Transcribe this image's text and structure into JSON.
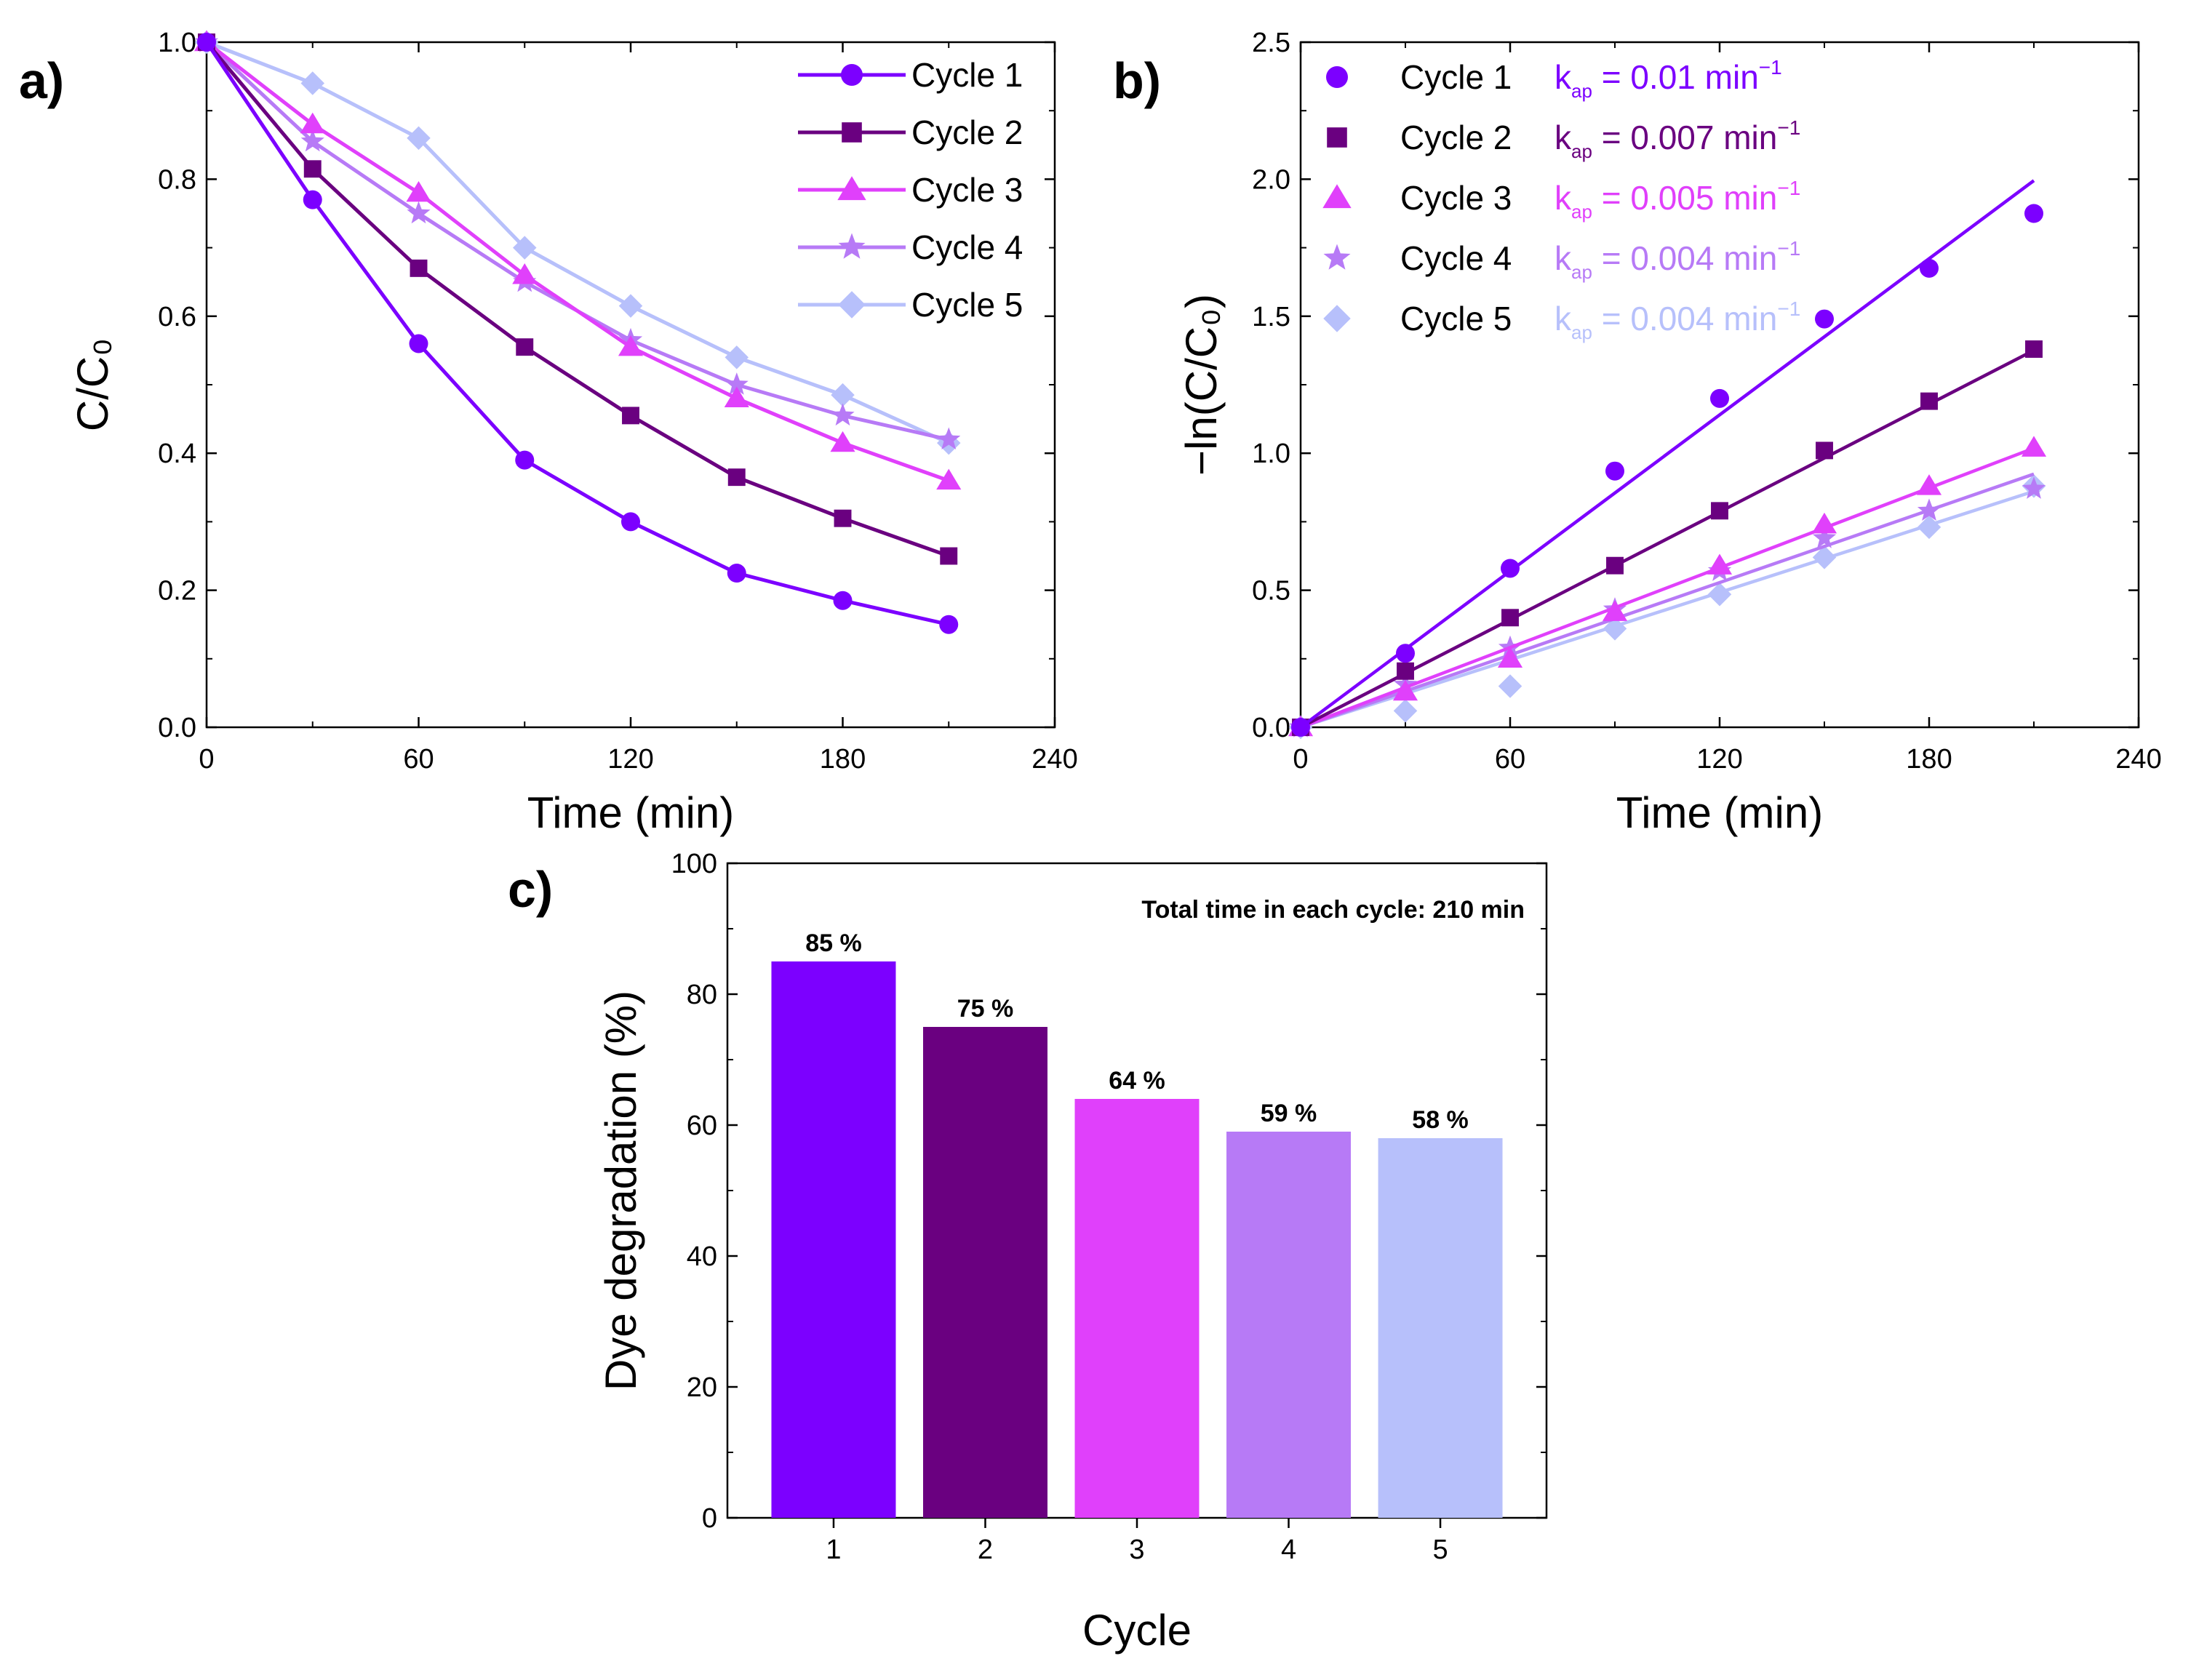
{
  "colors": {
    "cycle1": "#7c00ff",
    "cycle2": "#6a0080",
    "cycle3": "#e040fb",
    "cycle4": "#b77af6",
    "cycle5": "#b7c0fb"
  },
  "chart_data": [
    {
      "id": "a",
      "type": "line",
      "panel_label": "a)",
      "xlabel": "Time (min)",
      "ylabel": "C/C₀",
      "xlim": [
        0,
        240
      ],
      "ylim": [
        0,
        1
      ],
      "xticks": [
        0,
        60,
        120,
        180,
        240
      ],
      "yticks": [
        0.0,
        0.2,
        0.4,
        0.6,
        0.8,
        1.0
      ],
      "ytick_labels": [
        "0.0",
        "0.2",
        "0.4",
        "0.6",
        "0.8",
        "1.0"
      ],
      "x": [
        0,
        30,
        60,
        90,
        120,
        150,
        180,
        210
      ],
      "legend_position": "top-right",
      "series": [
        {
          "name": "Cycle 1",
          "marker": "circle",
          "values": [
            1.0,
            0.77,
            0.56,
            0.39,
            0.3,
            0.225,
            0.185,
            0.15
          ]
        },
        {
          "name": "Cycle 2",
          "marker": "square",
          "values": [
            1.0,
            0.815,
            0.67,
            0.555,
            0.455,
            0.365,
            0.305,
            0.25
          ]
        },
        {
          "name": "Cycle 3",
          "marker": "triangle",
          "values": [
            1.0,
            0.88,
            0.78,
            0.66,
            0.555,
            0.48,
            0.415,
            0.36
          ]
        },
        {
          "name": "Cycle 4",
          "marker": "star",
          "values": [
            1.0,
            0.855,
            0.75,
            0.65,
            0.565,
            0.5,
            0.455,
            0.42
          ]
        },
        {
          "name": "Cycle 5",
          "marker": "diamond",
          "values": [
            1.0,
            0.94,
            0.86,
            0.7,
            0.615,
            0.54,
            0.485,
            0.415
          ]
        }
      ]
    },
    {
      "id": "b",
      "type": "scatter",
      "panel_label": "b)",
      "xlabel": "Time (min)",
      "ylabel": "−ln(C/C₀)",
      "xlim": [
        0,
        240
      ],
      "ylim": [
        0,
        2.5
      ],
      "xticks": [
        0,
        60,
        120,
        180,
        240
      ],
      "yticks": [
        0.0,
        0.5,
        1.0,
        1.5,
        2.0,
        2.5
      ],
      "ytick_labels": [
        "0.0",
        "0.5",
        "1.0",
        "1.5",
        "2.0",
        "2.5"
      ],
      "x": [
        0,
        30,
        60,
        90,
        120,
        150,
        180,
        210
      ],
      "legend_position": "top-left",
      "series": [
        {
          "name": "Cycle 1",
          "marker": "circle",
          "kap_prefix": "k",
          "kap_sub": "ap",
          "kap_value": " = 0.01 min",
          "kap_sup": "−1",
          "slope": 0.0095,
          "values": [
            0.0,
            0.27,
            0.58,
            0.935,
            1.2,
            1.49,
            1.675,
            1.875
          ]
        },
        {
          "name": "Cycle 2",
          "marker": "square",
          "kap_prefix": "k",
          "kap_sub": "ap",
          "kap_value": " = 0.007 min",
          "kap_sup": "−1",
          "slope": 0.00655,
          "values": [
            0.0,
            0.205,
            0.4,
            0.59,
            0.79,
            1.01,
            1.19,
            1.38
          ]
        },
        {
          "name": "Cycle 3",
          "marker": "triangle",
          "kap_prefix": "k",
          "kap_sub": "ap",
          "kap_value": " = 0.005 min",
          "kap_sup": "−1",
          "slope": 0.00485,
          "values": [
            0.0,
            0.13,
            0.25,
            0.42,
            0.59,
            0.74,
            0.88,
            1.02
          ]
        },
        {
          "name": "Cycle 4",
          "marker": "star",
          "kap_prefix": "k",
          "kap_sub": "ap",
          "kap_value": " = 0.004 min",
          "kap_sup": "−1",
          "slope": 0.0044,
          "values": [
            0.0,
            0.155,
            0.29,
            0.43,
            0.57,
            0.69,
            0.79,
            0.87
          ]
        },
        {
          "name": "Cycle 5",
          "marker": "diamond",
          "kap_prefix": "k",
          "kap_sub": "ap",
          "kap_value": " = 0.004 min",
          "kap_sup": "−1",
          "slope": 0.0041,
          "values": [
            0.0,
            0.06,
            0.15,
            0.36,
            0.485,
            0.62,
            0.73,
            0.88
          ]
        }
      ]
    },
    {
      "id": "c",
      "type": "bar",
      "panel_label": "c)",
      "xlabel": "Cycle",
      "ylabel": "Dye degradation (%)",
      "ylim": [
        0,
        100
      ],
      "yticks": [
        0,
        20,
        40,
        60,
        80,
        100
      ],
      "ytick_labels": [
        "0",
        "20",
        "40",
        "60",
        "80",
        "100"
      ],
      "categories": [
        "1",
        "2",
        "3",
        "4",
        "5"
      ],
      "values": [
        85,
        75,
        64,
        59,
        58
      ],
      "data_labels": [
        "85 %",
        "75 %",
        "64 %",
        "59 %",
        "58 %"
      ],
      "annotation": "Total time in each cycle: 210 min"
    }
  ]
}
